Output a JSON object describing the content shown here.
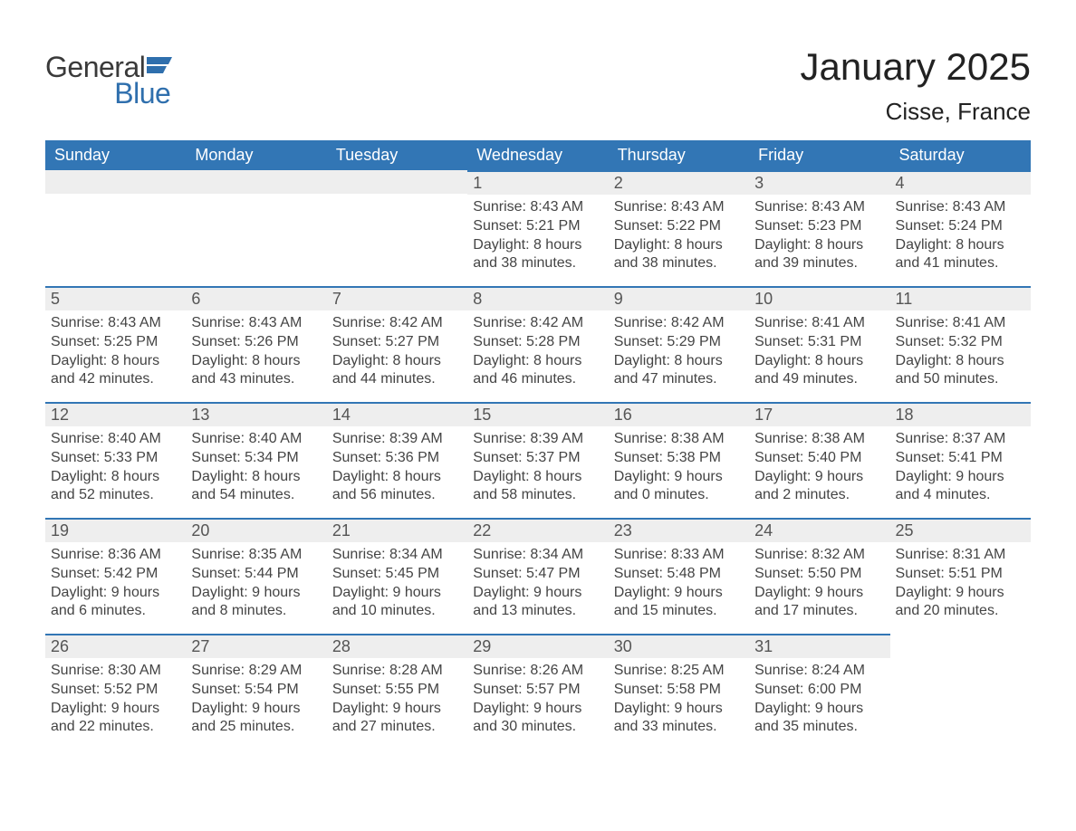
{
  "logo": {
    "word1": "General",
    "word2": "Blue"
  },
  "title": "January 2025",
  "location": "Cisse, France",
  "header_color": "#3276b5",
  "row_bar_color": "#eeeeee",
  "text_color": "#444444",
  "days_of_week": [
    "Sunday",
    "Monday",
    "Tuesday",
    "Wednesday",
    "Thursday",
    "Friday",
    "Saturday"
  ],
  "weeks": [
    [
      null,
      null,
      null,
      {
        "n": "1",
        "sunrise": "8:43 AM",
        "sunset": "5:21 PM",
        "daylight": "8 hours and 38 minutes."
      },
      {
        "n": "2",
        "sunrise": "8:43 AM",
        "sunset": "5:22 PM",
        "daylight": "8 hours and 38 minutes."
      },
      {
        "n": "3",
        "sunrise": "8:43 AM",
        "sunset": "5:23 PM",
        "daylight": "8 hours and 39 minutes."
      },
      {
        "n": "4",
        "sunrise": "8:43 AM",
        "sunset": "5:24 PM",
        "daylight": "8 hours and 41 minutes."
      }
    ],
    [
      {
        "n": "5",
        "sunrise": "8:43 AM",
        "sunset": "5:25 PM",
        "daylight": "8 hours and 42 minutes."
      },
      {
        "n": "6",
        "sunrise": "8:43 AM",
        "sunset": "5:26 PM",
        "daylight": "8 hours and 43 minutes."
      },
      {
        "n": "7",
        "sunrise": "8:42 AM",
        "sunset": "5:27 PM",
        "daylight": "8 hours and 44 minutes."
      },
      {
        "n": "8",
        "sunrise": "8:42 AM",
        "sunset": "5:28 PM",
        "daylight": "8 hours and 46 minutes."
      },
      {
        "n": "9",
        "sunrise": "8:42 AM",
        "sunset": "5:29 PM",
        "daylight": "8 hours and 47 minutes."
      },
      {
        "n": "10",
        "sunrise": "8:41 AM",
        "sunset": "5:31 PM",
        "daylight": "8 hours and 49 minutes."
      },
      {
        "n": "11",
        "sunrise": "8:41 AM",
        "sunset": "5:32 PM",
        "daylight": "8 hours and 50 minutes."
      }
    ],
    [
      {
        "n": "12",
        "sunrise": "8:40 AM",
        "sunset": "5:33 PM",
        "daylight": "8 hours and 52 minutes."
      },
      {
        "n": "13",
        "sunrise": "8:40 AM",
        "sunset": "5:34 PM",
        "daylight": "8 hours and 54 minutes."
      },
      {
        "n": "14",
        "sunrise": "8:39 AM",
        "sunset": "5:36 PM",
        "daylight": "8 hours and 56 minutes."
      },
      {
        "n": "15",
        "sunrise": "8:39 AM",
        "sunset": "5:37 PM",
        "daylight": "8 hours and 58 minutes."
      },
      {
        "n": "16",
        "sunrise": "8:38 AM",
        "sunset": "5:38 PM",
        "daylight": "9 hours and 0 minutes."
      },
      {
        "n": "17",
        "sunrise": "8:38 AM",
        "sunset": "5:40 PM",
        "daylight": "9 hours and 2 minutes."
      },
      {
        "n": "18",
        "sunrise": "8:37 AM",
        "sunset": "5:41 PM",
        "daylight": "9 hours and 4 minutes."
      }
    ],
    [
      {
        "n": "19",
        "sunrise": "8:36 AM",
        "sunset": "5:42 PM",
        "daylight": "9 hours and 6 minutes."
      },
      {
        "n": "20",
        "sunrise": "8:35 AM",
        "sunset": "5:44 PM",
        "daylight": "9 hours and 8 minutes."
      },
      {
        "n": "21",
        "sunrise": "8:34 AM",
        "sunset": "5:45 PM",
        "daylight": "9 hours and 10 minutes."
      },
      {
        "n": "22",
        "sunrise": "8:34 AM",
        "sunset": "5:47 PM",
        "daylight": "9 hours and 13 minutes."
      },
      {
        "n": "23",
        "sunrise": "8:33 AM",
        "sunset": "5:48 PM",
        "daylight": "9 hours and 15 minutes."
      },
      {
        "n": "24",
        "sunrise": "8:32 AM",
        "sunset": "5:50 PM",
        "daylight": "9 hours and 17 minutes."
      },
      {
        "n": "25",
        "sunrise": "8:31 AM",
        "sunset": "5:51 PM",
        "daylight": "9 hours and 20 minutes."
      }
    ],
    [
      {
        "n": "26",
        "sunrise": "8:30 AM",
        "sunset": "5:52 PM",
        "daylight": "9 hours and 22 minutes."
      },
      {
        "n": "27",
        "sunrise": "8:29 AM",
        "sunset": "5:54 PM",
        "daylight": "9 hours and 25 minutes."
      },
      {
        "n": "28",
        "sunrise": "8:28 AM",
        "sunset": "5:55 PM",
        "daylight": "9 hours and 27 minutes."
      },
      {
        "n": "29",
        "sunrise": "8:26 AM",
        "sunset": "5:57 PM",
        "daylight": "9 hours and 30 minutes."
      },
      {
        "n": "30",
        "sunrise": "8:25 AM",
        "sunset": "5:58 PM",
        "daylight": "9 hours and 33 minutes."
      },
      {
        "n": "31",
        "sunrise": "8:24 AM",
        "sunset": "6:00 PM",
        "daylight": "9 hours and 35 minutes."
      },
      null
    ]
  ],
  "labels": {
    "sunrise": "Sunrise: ",
    "sunset": "Sunset: ",
    "daylight": "Daylight: "
  }
}
